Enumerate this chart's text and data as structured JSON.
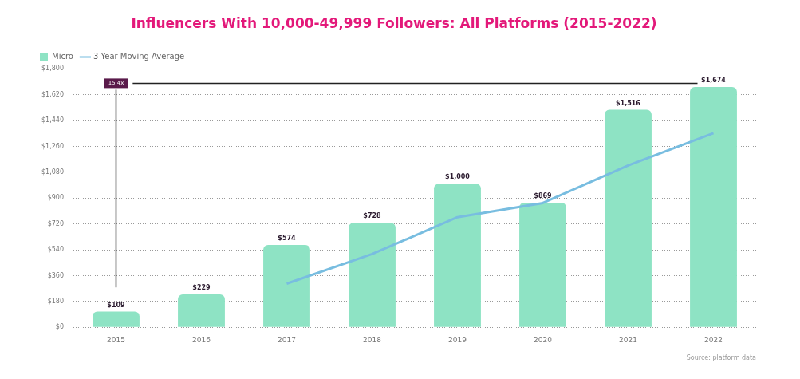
{
  "chart_data": {
    "type": "bar",
    "title": "Influencers With 10,000-49,999 Followers: All Platforms (2015-2022)",
    "categories": [
      "2015",
      "2016",
      "2017",
      "2018",
      "2019",
      "2020",
      "2021",
      "2022"
    ],
    "series": [
      {
        "name": "Micro",
        "color": "#8ee3c4",
        "values": [
          109,
          229,
          574,
          728,
          1000,
          869,
          1516,
          1674
        ],
        "value_labels": [
          "$109",
          "$229",
          "$574",
          "$728",
          "$1,000",
          "$869",
          "$1,516",
          "$1,674"
        ]
      },
      {
        "name": "3 Year Moving Average",
        "type": "line",
        "color": "#78bde0",
        "values": [
          null,
          null,
          304,
          510,
          767,
          866,
          1128,
          1353
        ]
      }
    ],
    "ylim": [
      0,
      1800
    ],
    "yticks": [
      {
        "value": 0,
        "label": "$0"
      },
      {
        "value": 180,
        "label": "$180"
      },
      {
        "value": 360,
        "label": "$360"
      },
      {
        "value": 540,
        "label": "$540"
      },
      {
        "value": 720,
        "label": "$720"
      },
      {
        "value": 900,
        "label": "$900"
      },
      {
        "value": 1080,
        "label": "$1,080"
      },
      {
        "value": 1260,
        "label": "$1,260"
      },
      {
        "value": 1440,
        "label": "$1,440"
      },
      {
        "value": 1620,
        "label": "$1,620"
      },
      {
        "value": 1800,
        "label": "$1,800"
      }
    ],
    "grid": "y",
    "legend": "top left",
    "marker": "none",
    "line_style": "solid",
    "ref_lines": [
      {
        "axis": "y",
        "value": 1700,
        "label": "15.4x",
        "color": "#222222"
      },
      {
        "axis": "x",
        "value": "2015",
        "color": "#222222"
      }
    ],
    "annotations": [
      "Source: platform data"
    ]
  }
}
